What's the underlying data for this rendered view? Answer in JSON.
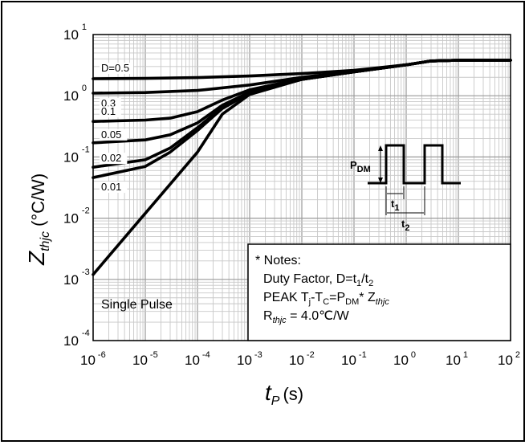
{
  "chart_data": {
    "type": "line",
    "title": "",
    "xlabel": "t",
    "xlabel_sub": "P",
    "xlabel_unit": "(s)",
    "ylabel": "Z",
    "ylabel_sub": "thjc",
    "ylabel_unit": "(°C/W)",
    "x_scale": "log",
    "y_scale": "log",
    "xlim": [
      1e-06,
      100
    ],
    "ylim": [
      0.0001,
      10
    ],
    "grid": true,
    "x_ticks": [
      {
        "base": "10",
        "exp": "-6"
      },
      {
        "base": "10",
        "exp": "-5"
      },
      {
        "base": "10",
        "exp": "-4"
      },
      {
        "base": "10",
        "exp": "-3"
      },
      {
        "base": "10",
        "exp": "-2"
      },
      {
        "base": "10",
        "exp": "-1"
      },
      {
        "base": "10",
        "exp": "0"
      },
      {
        "base": "10",
        "exp": "1"
      },
      {
        "base": "10",
        "exp": "2"
      }
    ],
    "y_ticks": [
      {
        "base": "10",
        "exp": "1"
      },
      {
        "base": "10",
        "exp": "0"
      },
      {
        "base": "10",
        "exp": "-1"
      },
      {
        "base": "10",
        "exp": "-2"
      },
      {
        "base": "10",
        "exp": "-3"
      },
      {
        "base": "10",
        "exp": "-4"
      }
    ],
    "series": [
      {
        "name": "D=0.5",
        "x": [
          1e-06,
          1e-05,
          0.0001,
          0.001,
          0.01,
          0.1,
          1,
          3,
          10,
          100
        ],
        "y": [
          1.9,
          1.92,
          1.98,
          2.1,
          2.3,
          2.6,
          3.2,
          3.7,
          3.8,
          3.8
        ]
      },
      {
        "name": "0.3",
        "x": [
          1e-06,
          1e-05,
          0.0001,
          0.001,
          0.01,
          0.1,
          1,
          3,
          10,
          100
        ],
        "y": [
          1.1,
          1.13,
          1.22,
          1.5,
          2.0,
          2.5,
          3.2,
          3.7,
          3.8,
          3.8
        ]
      },
      {
        "name": "0.1",
        "x": [
          1e-06,
          1e-05,
          3e-05,
          0.0001,
          0.0003,
          0.001,
          0.01,
          0.1,
          1,
          3,
          10,
          100
        ],
        "y": [
          0.38,
          0.4,
          0.43,
          0.55,
          0.85,
          1.25,
          1.9,
          2.45,
          3.2,
          3.7,
          3.8,
          3.8
        ]
      },
      {
        "name": "0.05",
        "x": [
          1e-06,
          1e-05,
          3e-05,
          0.0001,
          0.0003,
          0.001,
          0.01,
          0.1,
          1,
          3,
          10,
          100
        ],
        "y": [
          0.17,
          0.19,
          0.23,
          0.36,
          0.7,
          1.15,
          1.85,
          2.45,
          3.2,
          3.7,
          3.8,
          3.8
        ]
      },
      {
        "name": "0.02",
        "x": [
          1e-06,
          1e-05,
          3e-05,
          0.0001,
          0.0003,
          0.001,
          0.01,
          0.1,
          1,
          3,
          10,
          100
        ],
        "y": [
          0.068,
          0.09,
          0.14,
          0.3,
          0.65,
          1.1,
          1.85,
          2.45,
          3.2,
          3.7,
          3.8,
          3.8
        ]
      },
      {
        "name": "0.01",
        "x": [
          1e-06,
          1e-05,
          3e-05,
          0.0001,
          0.0003,
          0.001,
          0.01,
          0.1,
          1,
          3,
          10,
          100
        ],
        "y": [
          0.046,
          0.07,
          0.12,
          0.27,
          0.62,
          1.1,
          1.85,
          2.45,
          3.2,
          3.7,
          3.8,
          3.8
        ]
      },
      {
        "name": "Single Pulse",
        "x": [
          1e-06,
          1e-05,
          0.0001,
          0.0003,
          0.001,
          0.01,
          0.1,
          1,
          3,
          10,
          100
        ],
        "y": [
          0.0012,
          0.012,
          0.12,
          0.5,
          1.05,
          1.85,
          2.45,
          3.2,
          3.7,
          3.8,
          3.8
        ]
      }
    ],
    "inset_labels": {
      "pdm_main": "P",
      "pdm_sub": "DM",
      "t1_main": "t",
      "t1_sub": "1",
      "t2_main": "t",
      "t2_sub": "2"
    },
    "notes": {
      "header": "* Notes:",
      "line1_main": "Duty Factor, D=t",
      "line1_s1": "1",
      "line1_mid": "/t",
      "line1_s2": "2",
      "line2_a": "PEAK T",
      "line2_s1": "j",
      "line2_b": "-T",
      "line2_s2": "C",
      "line2_c": "=P",
      "line2_s3": "DM",
      "line2_d": "* Z",
      "line2_s4": "thjc",
      "line3_a": "R",
      "line3_s1": "thjc",
      "line3_b": " = 4.0℃/W"
    }
  }
}
